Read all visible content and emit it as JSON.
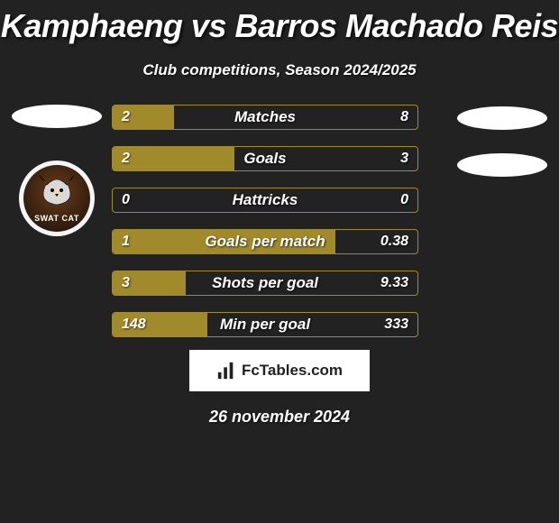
{
  "title": "Kamphaeng vs Barros Machado Reis",
  "subtitle": "Club competitions, Season 2024/2025",
  "date": "26 november 2024",
  "footer_label": "FcTables.com",
  "colors": {
    "background": "#222222",
    "bar_border": "#a08a2c",
    "bar_fill": "#a08a2c",
    "text": "#ffffff",
    "ellipse": "#ffffff",
    "badge_bg": "#f5f5f5"
  },
  "left_team": {
    "ellipse_present": true,
    "badge_label": "SWAT CAT"
  },
  "right_team": {
    "ellipse_count": 2
  },
  "stats": [
    {
      "label": "Matches",
      "left_val": "2",
      "right_val": "8",
      "fill_pct": 20
    },
    {
      "label": "Goals",
      "left_val": "2",
      "right_val": "3",
      "fill_pct": 40
    },
    {
      "label": "Hattricks",
      "left_val": "0",
      "right_val": "0",
      "fill_pct": 0
    },
    {
      "label": "Goals per match",
      "left_val": "1",
      "right_val": "0.38",
      "fill_pct": 73
    },
    {
      "label": "Shots per goal",
      "left_val": "3",
      "right_val": "9.33",
      "fill_pct": 24
    },
    {
      "label": "Min per goal",
      "left_val": "148",
      "right_val": "333",
      "fill_pct": 31
    }
  ]
}
